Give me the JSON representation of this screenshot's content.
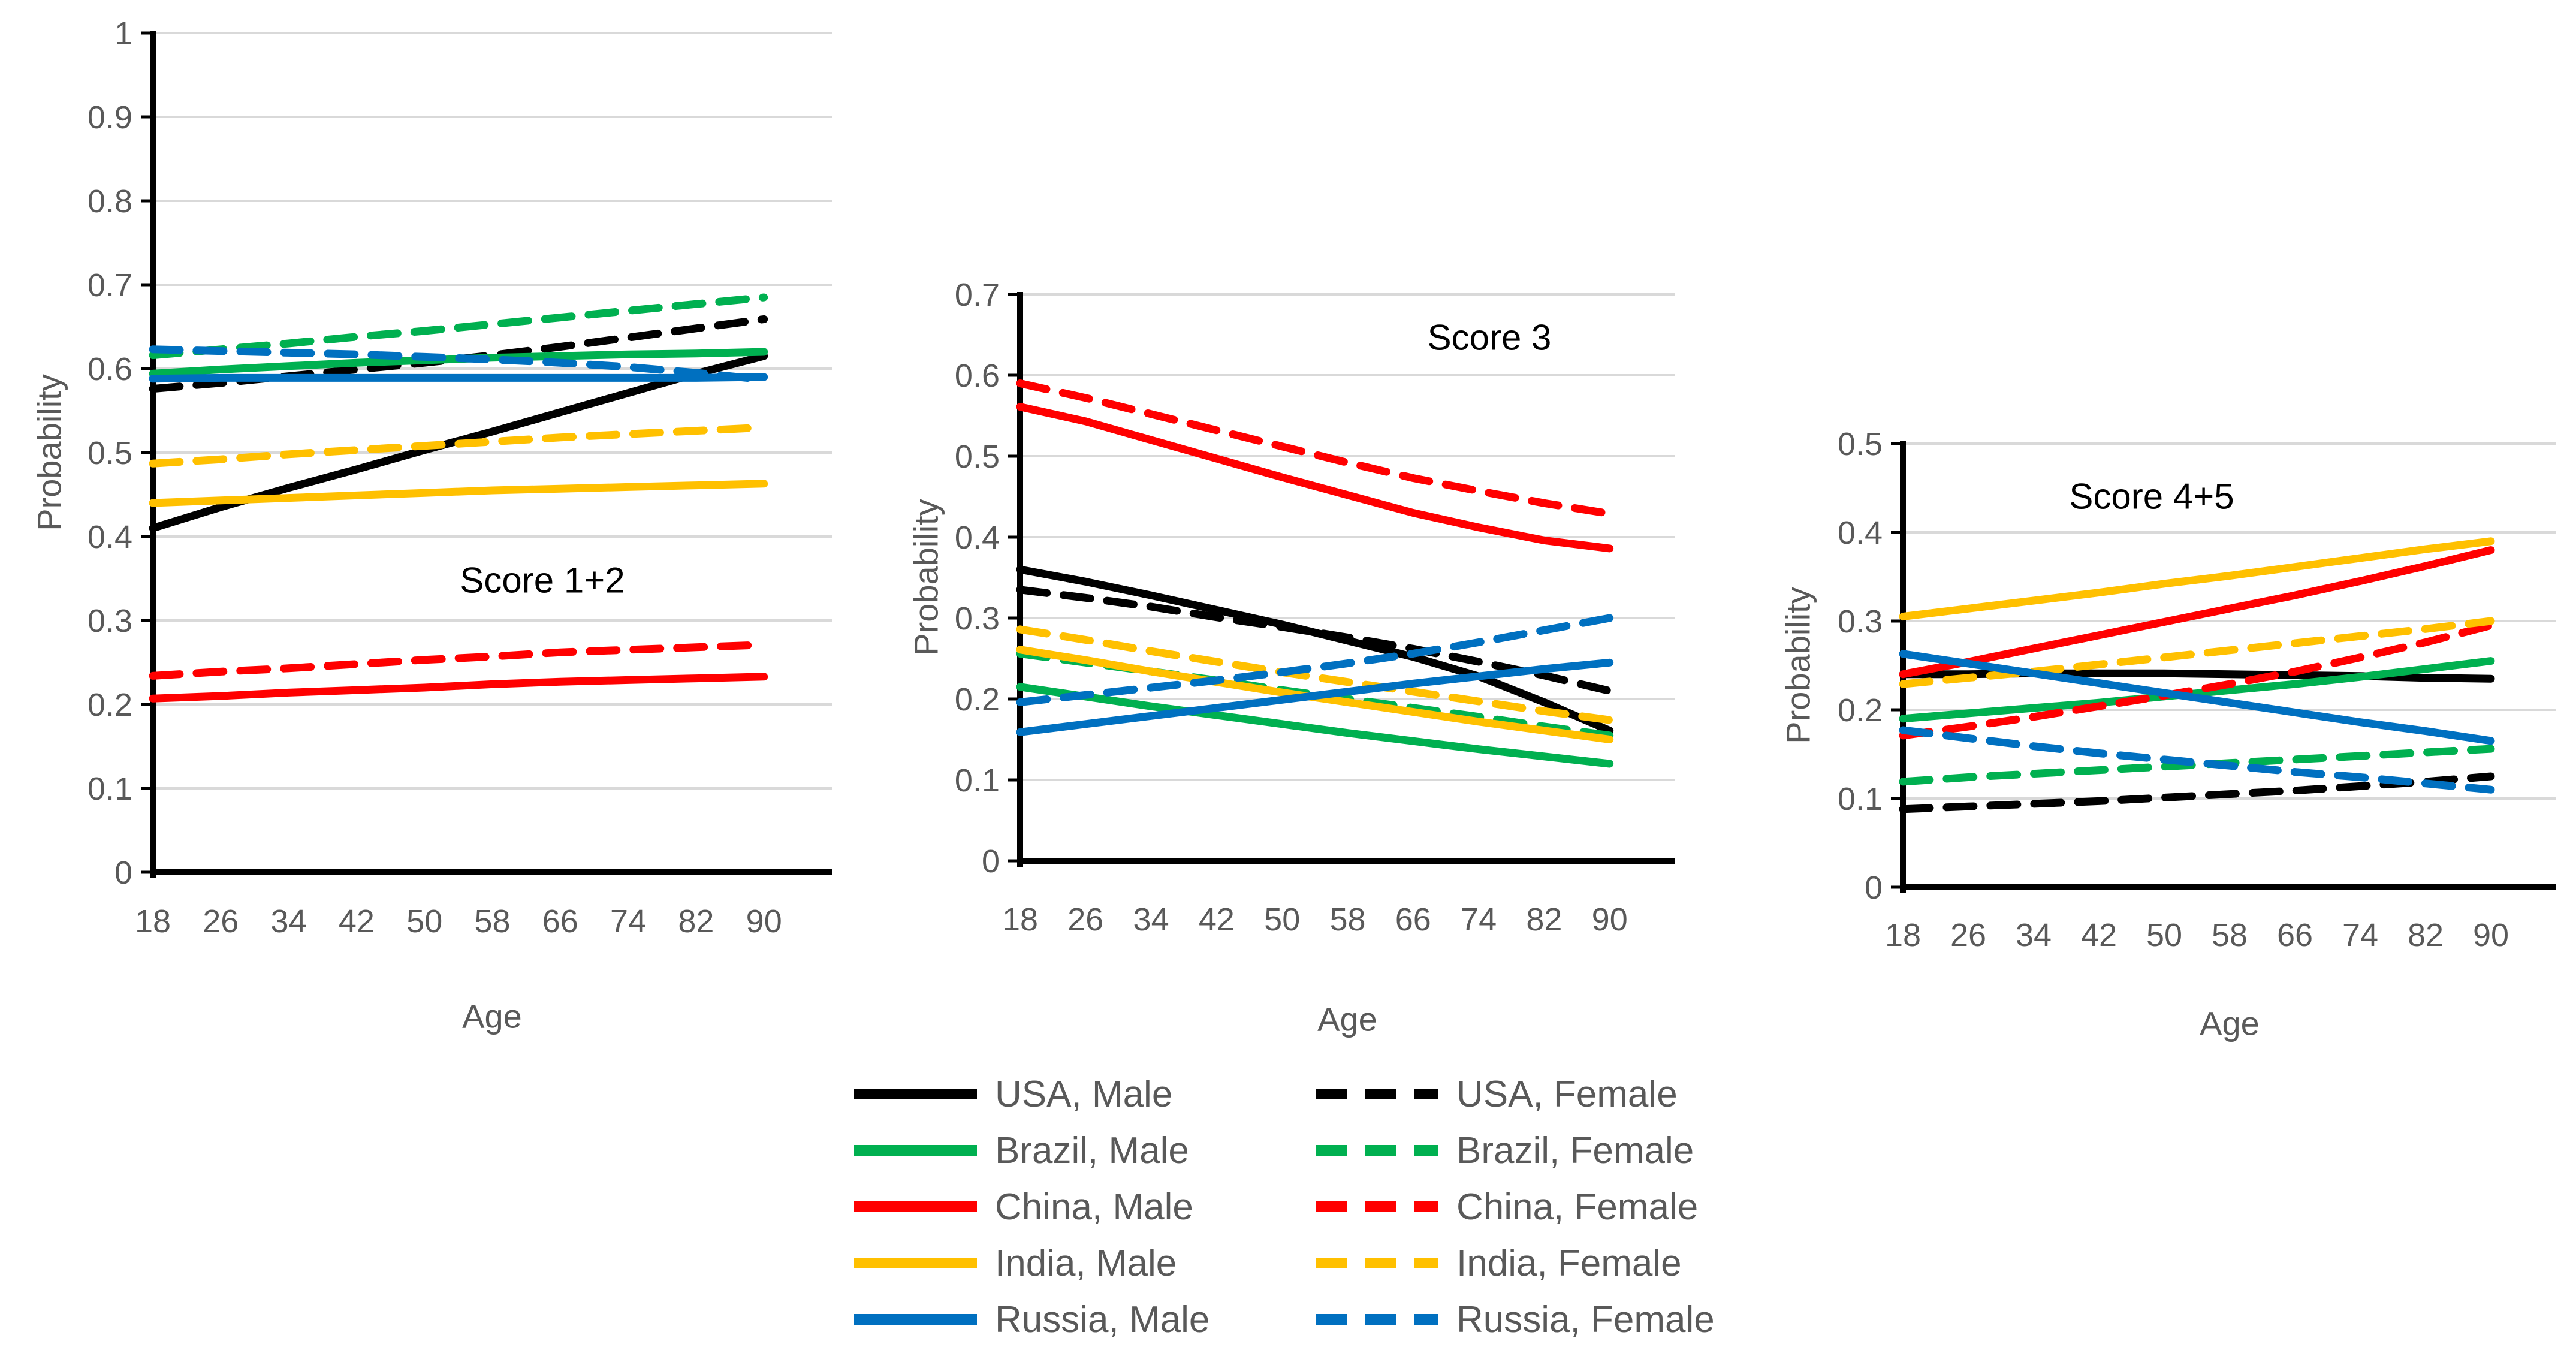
{
  "page": {
    "background": "#FFFFFF"
  },
  "colors": {
    "usa": "#000000",
    "brazil": "#00B050",
    "china": "#FF0000",
    "india": "#FFC000",
    "russia": "#0070C0",
    "gridline": "#D9D9D9",
    "axis": "#000000",
    "tick_text": "#595959",
    "title_text": "#000000"
  },
  "chart_data": [
    {
      "type": "line",
      "title": "Score 1+2",
      "xlabel": "Age",
      "ylabel": "Probability",
      "x": [
        18,
        26,
        34,
        42,
        50,
        58,
        66,
        74,
        82,
        90
      ],
      "ylim": [
        0,
        1
      ],
      "ytick_step": 0.1,
      "ytick_labels": [
        "0",
        "0.1",
        "0.2",
        "0.3",
        "0.4",
        "0.5",
        "0.6",
        "0.7",
        "0.8",
        "0.9",
        "1"
      ],
      "grid": true,
      "legend_position": "none",
      "series": [
        {
          "name": "USA, Male",
          "color": "#000000",
          "dash": false,
          "values": [
            0.41,
            0.435,
            0.458,
            0.48,
            0.503,
            0.525,
            0.548,
            0.571,
            0.594,
            0.615
          ]
        },
        {
          "name": "USA, Female",
          "color": "#000000",
          "dash": true,
          "values": [
            0.576,
            0.583,
            0.591,
            0.599,
            0.607,
            0.616,
            0.626,
            0.637,
            0.648,
            0.659
          ]
        },
        {
          "name": "Brazil, Male",
          "color": "#00B050",
          "dash": false,
          "values": [
            0.594,
            0.599,
            0.603,
            0.607,
            0.61,
            0.613,
            0.615,
            0.617,
            0.618,
            0.62
          ]
        },
        {
          "name": "Brazil, Female",
          "color": "#00B050",
          "dash": true,
          "values": [
            0.616,
            0.623,
            0.63,
            0.638,
            0.645,
            0.653,
            0.661,
            0.669,
            0.677,
            0.685
          ]
        },
        {
          "name": "China, Male",
          "color": "#FF0000",
          "dash": false,
          "values": [
            0.207,
            0.21,
            0.214,
            0.217,
            0.22,
            0.224,
            0.227,
            0.229,
            0.231,
            0.233
          ]
        },
        {
          "name": "China, Female",
          "color": "#FF0000",
          "dash": true,
          "values": [
            0.234,
            0.239,
            0.243,
            0.248,
            0.253,
            0.257,
            0.262,
            0.265,
            0.268,
            0.271
          ]
        },
        {
          "name": "India, Male",
          "color": "#FFC000",
          "dash": false,
          "values": [
            0.44,
            0.443,
            0.446,
            0.449,
            0.452,
            0.455,
            0.457,
            0.459,
            0.461,
            0.463
          ]
        },
        {
          "name": "India, Female",
          "color": "#FFC000",
          "dash": true,
          "values": [
            0.487,
            0.492,
            0.498,
            0.503,
            0.508,
            0.513,
            0.518,
            0.522,
            0.526,
            0.53
          ]
        },
        {
          "name": "Russia, Male",
          "color": "#0070C0",
          "dash": false,
          "values": [
            0.588,
            0.589,
            0.589,
            0.589,
            0.589,
            0.589,
            0.589,
            0.589,
            0.589,
            0.59
          ]
        },
        {
          "name": "Russia, Female",
          "color": "#0070C0",
          "dash": true,
          "values": [
            0.623,
            0.621,
            0.619,
            0.617,
            0.614,
            0.611,
            0.607,
            0.602,
            0.595,
            0.587
          ]
        }
      ]
    },
    {
      "type": "line",
      "title": "Score 3",
      "xlabel": "Age",
      "ylabel": "Probability",
      "x": [
        18,
        26,
        34,
        42,
        50,
        58,
        66,
        74,
        82,
        90
      ],
      "ylim": [
        0,
        0.7
      ],
      "ytick_step": 0.1,
      "ytick_labels": [
        "0",
        "0.1",
        "0.2",
        "0.3",
        "0.4",
        "0.5",
        "0.6",
        "0.7"
      ],
      "grid": true,
      "legend_position": "none",
      "series": [
        {
          "name": "USA, Male",
          "color": "#000000",
          "dash": false,
          "values": [
            0.36,
            0.345,
            0.328,
            0.31,
            0.292,
            0.272,
            0.252,
            0.228,
            0.196,
            0.161
          ]
        },
        {
          "name": "USA, Female",
          "color": "#000000",
          "dash": true,
          "values": [
            0.335,
            0.325,
            0.314,
            0.301,
            0.289,
            0.276,
            0.262,
            0.246,
            0.229,
            0.21
          ]
        },
        {
          "name": "Brazil, Male",
          "color": "#00B050",
          "dash": false,
          "values": [
            0.215,
            0.203,
            0.191,
            0.18,
            0.169,
            0.158,
            0.148,
            0.138,
            0.129,
            0.12
          ]
        },
        {
          "name": "Brazil, Female",
          "color": "#00B050",
          "dash": true,
          "values": [
            0.256,
            0.245,
            0.234,
            0.223,
            0.211,
            0.2,
            0.189,
            0.178,
            0.166,
            0.155
          ]
        },
        {
          "name": "China, Male",
          "color": "#FF0000",
          "dash": false,
          "values": [
            0.561,
            0.543,
            0.52,
            0.497,
            0.474,
            0.452,
            0.43,
            0.412,
            0.396,
            0.386
          ]
        },
        {
          "name": "China, Female",
          "color": "#FF0000",
          "dash": true,
          "values": [
            0.59,
            0.572,
            0.552,
            0.532,
            0.512,
            0.492,
            0.473,
            0.457,
            0.442,
            0.429
          ]
        },
        {
          "name": "India, Male",
          "color": "#FFC000",
          "dash": false,
          "values": [
            0.261,
            0.248,
            0.234,
            0.221,
            0.208,
            0.196,
            0.184,
            0.172,
            0.161,
            0.15
          ]
        },
        {
          "name": "India, Female",
          "color": "#FFC000",
          "dash": true,
          "values": [
            0.286,
            0.273,
            0.259,
            0.246,
            0.233,
            0.221,
            0.209,
            0.197,
            0.185,
            0.174
          ]
        },
        {
          "name": "Russia, Male",
          "color": "#0070C0",
          "dash": false,
          "values": [
            0.159,
            0.169,
            0.179,
            0.189,
            0.199,
            0.209,
            0.219,
            0.228,
            0.237,
            0.245
          ]
        },
        {
          "name": "Russia, Female",
          "color": "#0070C0",
          "dash": true,
          "values": [
            0.196,
            0.205,
            0.214,
            0.223,
            0.233,
            0.244,
            0.256,
            0.27,
            0.285,
            0.3
          ]
        }
      ]
    },
    {
      "type": "line",
      "title": "Score 4+5",
      "xlabel": "Age",
      "ylabel": "Probability",
      "x": [
        18,
        26,
        34,
        42,
        50,
        58,
        66,
        74,
        82,
        90
      ],
      "ylim": [
        0,
        0.5
      ],
      "ytick_step": 0.1,
      "ytick_labels": [
        "0",
        "0.1",
        "0.2",
        "0.3",
        "0.4",
        "0.5"
      ],
      "grid": true,
      "legend_position": "none",
      "series": [
        {
          "name": "USA, Male",
          "color": "#000000",
          "dash": false,
          "values": [
            0.24,
            0.24,
            0.241,
            0.241,
            0.241,
            0.24,
            0.239,
            0.238,
            0.236,
            0.235
          ]
        },
        {
          "name": "USA, Female",
          "color": "#000000",
          "dash": true,
          "values": [
            0.088,
            0.091,
            0.094,
            0.097,
            0.101,
            0.105,
            0.109,
            0.114,
            0.119,
            0.125
          ]
        },
        {
          "name": "Brazil, Male",
          "color": "#00B050",
          "dash": false,
          "values": [
            0.19,
            0.196,
            0.202,
            0.208,
            0.215,
            0.222,
            0.229,
            0.237,
            0.246,
            0.255
          ]
        },
        {
          "name": "Brazil, Female",
          "color": "#00B050",
          "dash": true,
          "values": [
            0.119,
            0.124,
            0.128,
            0.132,
            0.136,
            0.14,
            0.144,
            0.148,
            0.152,
            0.156
          ]
        },
        {
          "name": "China, Male",
          "color": "#FF0000",
          "dash": false,
          "values": [
            0.24,
            0.254,
            0.269,
            0.284,
            0.299,
            0.314,
            0.329,
            0.345,
            0.362,
            0.38
          ]
        },
        {
          "name": "China, Female",
          "color": "#FF0000",
          "dash": true,
          "values": [
            0.171,
            0.181,
            0.192,
            0.204,
            0.216,
            0.229,
            0.243,
            0.259,
            0.276,
            0.295
          ]
        },
        {
          "name": "India, Male",
          "color": "#FFC000",
          "dash": false,
          "values": [
            0.305,
            0.314,
            0.323,
            0.332,
            0.342,
            0.351,
            0.361,
            0.371,
            0.381,
            0.39
          ]
        },
        {
          "name": "India, Female",
          "color": "#FFC000",
          "dash": true,
          "values": [
            0.229,
            0.236,
            0.243,
            0.251,
            0.259,
            0.267,
            0.275,
            0.283,
            0.291,
            0.3
          ]
        },
        {
          "name": "Russia, Male",
          "color": "#0070C0",
          "dash": false,
          "values": [
            0.263,
            0.252,
            0.241,
            0.23,
            0.219,
            0.208,
            0.197,
            0.186,
            0.176,
            0.165
          ]
        },
        {
          "name": "Russia, Female",
          "color": "#0070C0",
          "dash": true,
          "values": [
            0.177,
            0.168,
            0.159,
            0.151,
            0.144,
            0.137,
            0.13,
            0.124,
            0.117,
            0.11
          ]
        }
      ]
    }
  ],
  "legend": {
    "items": [
      {
        "label": "USA, Male",
        "color": "#000000",
        "dash": false
      },
      {
        "label": "USA, Female",
        "color": "#000000",
        "dash": true
      },
      {
        "label": "Brazil, Male",
        "color": "#00B050",
        "dash": false
      },
      {
        "label": "Brazil, Female",
        "color": "#00B050",
        "dash": true
      },
      {
        "label": "China, Male",
        "color": "#FF0000",
        "dash": false
      },
      {
        "label": "China, Female",
        "color": "#FF0000",
        "dash": true
      },
      {
        "label": "India, Male",
        "color": "#FFC000",
        "dash": false
      },
      {
        "label": "India, Female",
        "color": "#FFC000",
        "dash": true
      },
      {
        "label": "Russia, Male",
        "color": "#0070C0",
        "dash": false
      },
      {
        "label": "Russia, Female",
        "color": "#0070C0",
        "dash": true
      }
    ]
  }
}
